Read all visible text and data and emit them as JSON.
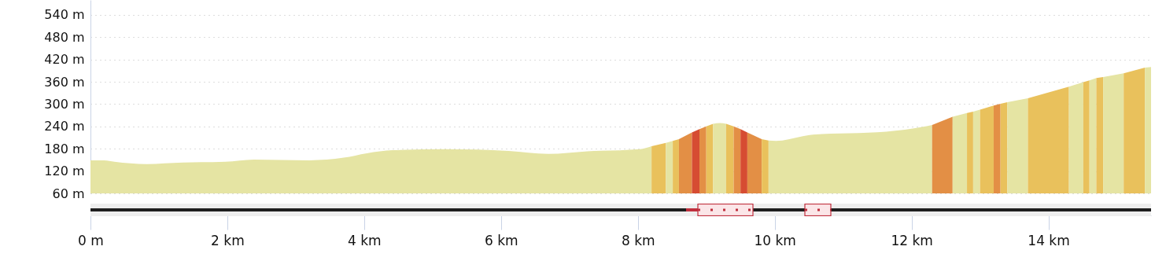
{
  "chart_data": {
    "type": "area",
    "xlim": [
      0,
      15.5
    ],
    "ylim": [
      60,
      580
    ],
    "xticks": [
      {
        "value": 0,
        "label": "0 m"
      },
      {
        "value": 2,
        "label": "2 km"
      },
      {
        "value": 4,
        "label": "4 km"
      },
      {
        "value": 6,
        "label": "6 km"
      },
      {
        "value": 8,
        "label": "8 km"
      },
      {
        "value": 10,
        "label": "10 km"
      },
      {
        "value": 12,
        "label": "12 km"
      },
      {
        "value": 14,
        "label": "14 km"
      }
    ],
    "yticks": [
      {
        "value": 60,
        "label": "60 m"
      },
      {
        "value": 120,
        "label": "120 m"
      },
      {
        "value": 180,
        "label": "180 m"
      },
      {
        "value": 240,
        "label": "240 m"
      },
      {
        "value": 300,
        "label": "300 m"
      },
      {
        "value": 360,
        "label": "360 m"
      },
      {
        "value": 420,
        "label": "420 m"
      },
      {
        "value": 480,
        "label": "480 m"
      },
      {
        "value": 540,
        "label": "540 m"
      }
    ],
    "grid": "y",
    "series": [
      {
        "color": "#e5e4a3",
        "x": [
          0,
          0.2,
          0.35,
          0.82,
          1.35,
          1.97,
          2.39,
          3.2,
          3.7,
          4.04,
          4.42,
          5.19,
          6.11,
          6.69,
          7.26,
          8.03,
          8.2
        ],
        "values": [
          149,
          149,
          145,
          139,
          143,
          145,
          151,
          149,
          156,
          168,
          176,
          179,
          174,
          166,
          173,
          179,
          187
        ]
      },
      {
        "color": "#e9c15c",
        "x": [
          8.2,
          8.41
        ],
        "values": [
          187,
          196
        ]
      },
      {
        "color": "#e5e4a3",
        "x": [
          8.41,
          8.51
        ],
        "values": [
          196,
          201
        ]
      },
      {
        "color": "#e9c15c",
        "x": [
          8.51,
          8.6
        ],
        "values": [
          201,
          206
        ]
      },
      {
        "color": "#e38f45",
        "x": [
          8.6,
          8.79
        ],
        "values": [
          206,
          224
        ]
      },
      {
        "color": "#d64c32",
        "x": [
          8.79,
          8.9
        ],
        "values": [
          224,
          233
        ]
      },
      {
        "color": "#e38f45",
        "x": [
          8.9,
          9.0
        ],
        "values": [
          233,
          240
        ]
      },
      {
        "color": "#e9c15c",
        "x": [
          9.0,
          9.1
        ],
        "values": [
          240,
          247
        ]
      },
      {
        "color": "#e5e4a3",
        "x": [
          9.1,
          9.2,
          9.29
        ],
        "values": [
          247,
          249,
          247
        ]
      },
      {
        "color": "#e9c15c",
        "x": [
          9.29,
          9.4
        ],
        "values": [
          247,
          240
        ]
      },
      {
        "color": "#e38f45",
        "x": [
          9.4,
          9.5
        ],
        "values": [
          240,
          233
        ]
      },
      {
        "color": "#d64c32",
        "x": [
          9.5,
          9.6
        ],
        "values": [
          233,
          224
        ]
      },
      {
        "color": "#e38f45",
        "x": [
          9.6,
          9.81
        ],
        "values": [
          224,
          206
        ]
      },
      {
        "color": "#e9c15c",
        "x": [
          9.81,
          9.91
        ],
        "values": [
          206,
          202
        ]
      },
      {
        "color": "#e5e4a3",
        "x": [
          9.91,
          10.02,
          10.56,
          11.63,
          12.17,
          12.3
        ],
        "values": [
          202,
          201,
          218,
          226,
          239,
          244
        ]
      },
      {
        "color": "#e38f45",
        "x": [
          12.3,
          12.6
        ],
        "values": [
          244,
          266
        ]
      },
      {
        "color": "#e5e4a3",
        "x": [
          12.6,
          12.81
        ],
        "values": [
          266,
          276
        ]
      },
      {
        "color": "#e9c15c",
        "x": [
          12.81,
          12.9
        ],
        "values": [
          276,
          280
        ]
      },
      {
        "color": "#e5e4a3",
        "x": [
          12.9,
          13.0
        ],
        "values": [
          280,
          285
        ]
      },
      {
        "color": "#e9c15c",
        "x": [
          13.0,
          13.2
        ],
        "values": [
          285,
          296
        ]
      },
      {
        "color": "#e38f45",
        "x": [
          13.2,
          13.3
        ],
        "values": [
          296,
          301
        ]
      },
      {
        "color": "#e9c15c",
        "x": [
          13.3,
          13.4
        ],
        "values": [
          301,
          305
        ]
      },
      {
        "color": "#e5e4a3",
        "x": [
          13.4,
          13.7
        ],
        "values": [
          305,
          316
        ]
      },
      {
        "color": "#e9c15c",
        "x": [
          13.7,
          14.3
        ],
        "values": [
          316,
          347
        ]
      },
      {
        "color": "#e5e4a3",
        "x": [
          14.3,
          14.51
        ],
        "values": [
          347,
          359
        ]
      },
      {
        "color": "#e9c15c",
        "x": [
          14.51,
          14.6
        ],
        "values": [
          359,
          364
        ]
      },
      {
        "color": "#e5e4a3",
        "x": [
          14.6,
          14.7
        ],
        "values": [
          364,
          370
        ]
      },
      {
        "color": "#e9c15c",
        "x": [
          14.7,
          14.8
        ],
        "values": [
          370,
          373
        ]
      },
      {
        "color": "#e5e4a3",
        "x": [
          14.8,
          15.1
        ],
        "values": [
          373,
          383
        ]
      },
      {
        "color": "#e9c15c",
        "x": [
          15.1,
          15.41
        ],
        "values": [
          383,
          398
        ]
      },
      {
        "color": "#e5e4a3",
        "x": [
          15.41,
          15.5
        ],
        "values": [
          398,
          400
        ]
      }
    ]
  }
}
